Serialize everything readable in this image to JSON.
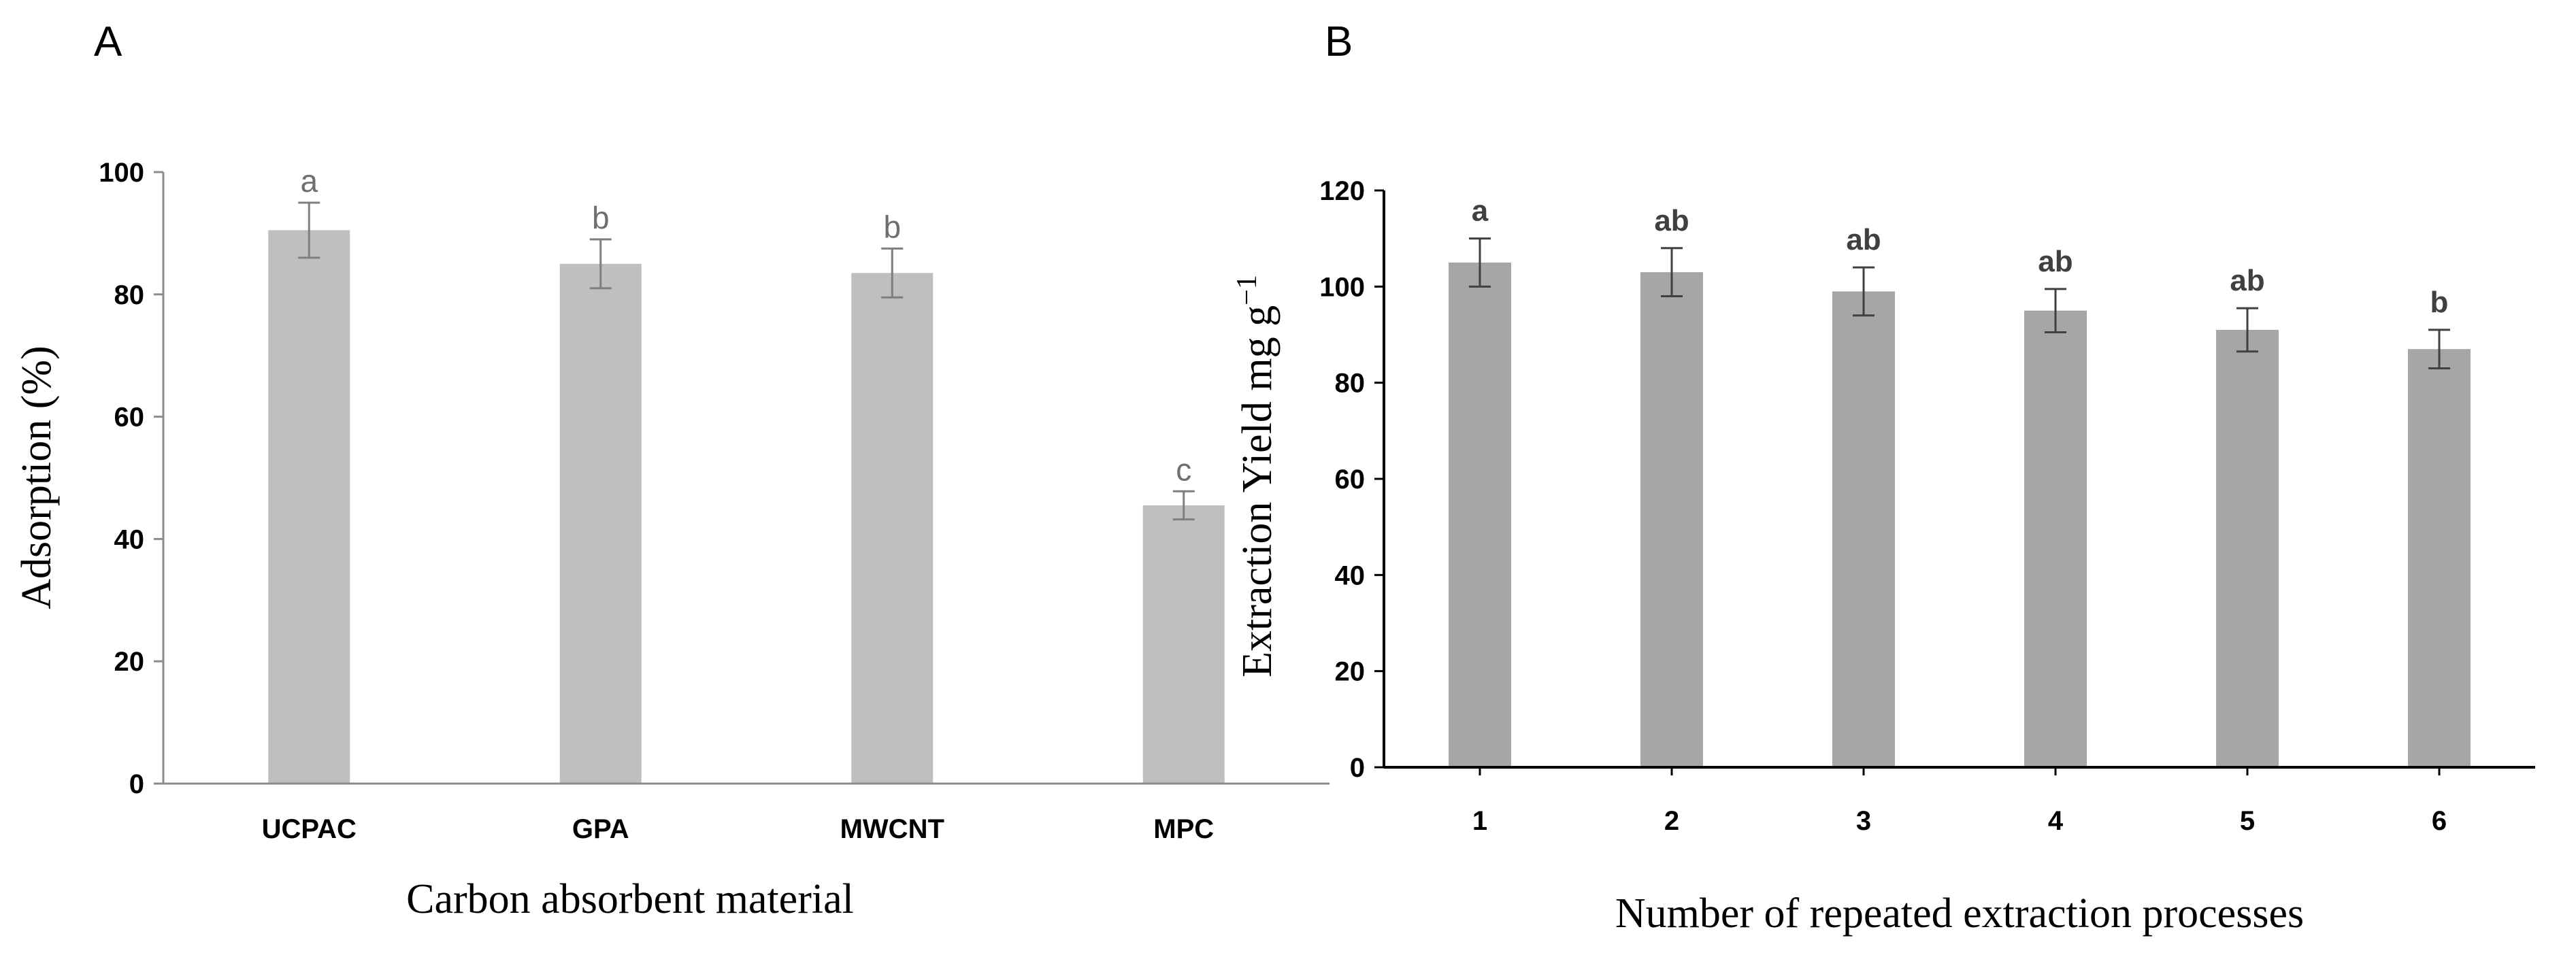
{
  "chart_data": [
    {
      "type": "bar",
      "panel_label": "A",
      "title": "",
      "xlabel": "Carbon absorbent material",
      "ylabel": "Adsorption (%)",
      "ylim": [
        0,
        100
      ],
      "yticks": [
        0,
        20,
        40,
        60,
        80,
        100
      ],
      "categories": [
        "UCPAC",
        "GPA",
        "MWCNT",
        "MPC"
      ],
      "values": [
        90.5,
        85,
        83.5,
        45.5
      ],
      "errors": [
        4.5,
        4,
        4,
        2.3
      ],
      "significance": [
        "a",
        "b",
        "b",
        "c"
      ],
      "bar_color": "#bfbfbf",
      "grid": false
    },
    {
      "type": "bar",
      "panel_label": "B",
      "title": "",
      "xlabel": "Number of repeated extraction processes",
      "ylabel": "Extraction Yield mg g",
      "ylabel_superscript": "−1",
      "ylim": [
        0,
        120
      ],
      "yticks": [
        0,
        20,
        40,
        60,
        80,
        100,
        120
      ],
      "categories": [
        "1",
        "2",
        "3",
        "4",
        "5",
        "6"
      ],
      "values": [
        105,
        103,
        99,
        95,
        91,
        87
      ],
      "errors": [
        5,
        5,
        5,
        4.5,
        4.5,
        4
      ],
      "significance": [
        "a",
        "ab",
        "ab",
        "ab",
        "ab",
        "b"
      ],
      "bar_color": "#a6a6a6",
      "grid": false
    }
  ]
}
